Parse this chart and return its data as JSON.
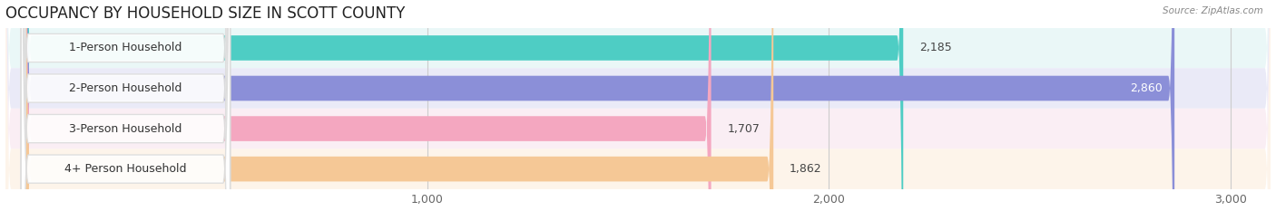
{
  "title": "OCCUPANCY BY HOUSEHOLD SIZE IN SCOTT COUNTY",
  "source": "Source: ZipAtlas.com",
  "categories": [
    "1-Person Household",
    "2-Person Household",
    "3-Person Household",
    "4+ Person Household"
  ],
  "values": [
    2185,
    2860,
    1707,
    1862
  ],
  "bar_colors": [
    "#4ecdc4",
    "#8b8fd8",
    "#f4a7c0",
    "#f5c896"
  ],
  "row_bg_colors": [
    "#eaf7f7",
    "#eaeaf7",
    "#faeef4",
    "#fdf4ea"
  ],
  "xlim_data": [
    0,
    3000
  ],
  "xticks": [
    1000,
    2000,
    3000
  ],
  "figsize": [
    14.06,
    2.33
  ],
  "dpi": 100,
  "title_fontsize": 12,
  "bar_height": 0.62,
  "value_fontsize": 9,
  "label_fontsize": 9
}
